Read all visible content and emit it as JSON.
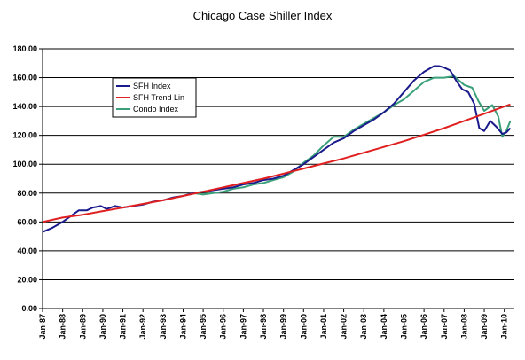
{
  "chart_data": {
    "type": "line",
    "title": "Chicago Case Shiller Index",
    "xlabel": "",
    "ylabel": "",
    "ylim": [
      0,
      180
    ],
    "yticks": [
      "0.00",
      "20.00",
      "40.00",
      "60.00",
      "80.00",
      "100.00",
      "120.00",
      "140.00",
      "160.00",
      "180.00"
    ],
    "xlim": [
      1987.0,
      2010.5
    ],
    "xticks": [
      "Jan-87",
      "Jan-88",
      "Jan-89",
      "Jan-90",
      "Jan-91",
      "Jan-92",
      "Jan-93",
      "Jan-94",
      "Jan-95",
      "Jan-96",
      "Jan-97",
      "Jan-98",
      "Jan-99",
      "Jan-00",
      "Jan-01",
      "Jan-02",
      "Jan-03",
      "Jan-04",
      "Jan-05",
      "Jan-06",
      "Jan-07",
      "Jan-08",
      "Jan-09",
      "Jan-10"
    ],
    "grid": "horizontal",
    "legend_position": "upper-left",
    "series": [
      {
        "name": "SFH Index",
        "color": "#1a1a8c",
        "points": [
          [
            1987.0,
            53
          ],
          [
            1987.5,
            56
          ],
          [
            1988.0,
            60
          ],
          [
            1988.4,
            64
          ],
          [
            1988.8,
            68
          ],
          [
            1989.2,
            68
          ],
          [
            1989.5,
            70
          ],
          [
            1989.9,
            71
          ],
          [
            1990.2,
            69
          ],
          [
            1990.6,
            71
          ],
          [
            1991.0,
            70
          ],
          [
            1991.5,
            71
          ],
          [
            1992.0,
            72
          ],
          [
            1992.5,
            74
          ],
          [
            1993.0,
            75
          ],
          [
            1993.5,
            77
          ],
          [
            1994.0,
            78
          ],
          [
            1994.5,
            80
          ],
          [
            1995.0,
            81
          ],
          [
            1995.5,
            82
          ],
          [
            1996.0,
            83
          ],
          [
            1996.5,
            84
          ],
          [
            1997.0,
            86
          ],
          [
            1997.5,
            87
          ],
          [
            1998.0,
            89
          ],
          [
            1998.5,
            90
          ],
          [
            1999.0,
            92
          ],
          [
            1999.5,
            96
          ],
          [
            2000.0,
            100
          ],
          [
            2000.5,
            105
          ],
          [
            2001.0,
            110
          ],
          [
            2001.5,
            115
          ],
          [
            2002.0,
            118
          ],
          [
            2002.5,
            123
          ],
          [
            2003.0,
            127
          ],
          [
            2003.5,
            131
          ],
          [
            2004.0,
            136
          ],
          [
            2004.5,
            142
          ],
          [
            2005.0,
            150
          ],
          [
            2005.5,
            158
          ],
          [
            2006.0,
            164
          ],
          [
            2006.5,
            168
          ],
          [
            2006.75,
            168
          ],
          [
            2007.0,
            167
          ],
          [
            2007.3,
            165
          ],
          [
            2007.6,
            158
          ],
          [
            2007.9,
            152
          ],
          [
            2008.2,
            150
          ],
          [
            2008.5,
            142
          ],
          [
            2008.75,
            125
          ],
          [
            2009.0,
            123
          ],
          [
            2009.3,
            130
          ],
          [
            2009.6,
            126
          ],
          [
            2009.9,
            121
          ],
          [
            2010.1,
            122
          ],
          [
            2010.3,
            125
          ]
        ]
      },
      {
        "name": "SFH Trend Lin",
        "color": "#e02020",
        "points": [
          [
            1987.0,
            60
          ],
          [
            1988.0,
            63
          ],
          [
            1989.0,
            65
          ],
          [
            1990.0,
            67.5
          ],
          [
            1991.0,
            70
          ],
          [
            1992.0,
            72.5
          ],
          [
            1993.0,
            75
          ],
          [
            1994.0,
            78
          ],
          [
            1995.0,
            81
          ],
          [
            1996.0,
            84
          ],
          [
            1997.0,
            87
          ],
          [
            1998.0,
            90
          ],
          [
            1999.0,
            93.5
          ],
          [
            2000.0,
            97
          ],
          [
            2001.0,
            100.5
          ],
          [
            2002.0,
            104
          ],
          [
            2003.0,
            108
          ],
          [
            2004.0,
            112
          ],
          [
            2005.0,
            116
          ],
          [
            2006.0,
            120.5
          ],
          [
            2007.0,
            125
          ],
          [
            2008.0,
            130
          ],
          [
            2009.0,
            135
          ],
          [
            2010.0,
            140
          ],
          [
            2010.3,
            141.5
          ]
        ]
      },
      {
        "name": "Condo Index",
        "color": "#3aa07a",
        "points": [
          [
            1994.5,
            80
          ],
          [
            1995.0,
            79
          ],
          [
            1995.5,
            80
          ],
          [
            1996.0,
            81
          ],
          [
            1996.5,
            83
          ],
          [
            1997.0,
            84
          ],
          [
            1997.5,
            86
          ],
          [
            1998.0,
            87
          ],
          [
            1998.5,
            89
          ],
          [
            1999.0,
            91
          ],
          [
            1999.5,
            95
          ],
          [
            2000.0,
            101
          ],
          [
            2000.5,
            106
          ],
          [
            2001.0,
            113
          ],
          [
            2001.5,
            119
          ],
          [
            2002.0,
            119
          ],
          [
            2002.5,
            124
          ],
          [
            2003.0,
            128
          ],
          [
            2003.5,
            132
          ],
          [
            2004.0,
            136
          ],
          [
            2004.5,
            141
          ],
          [
            2005.0,
            145
          ],
          [
            2005.5,
            151
          ],
          [
            2006.0,
            157
          ],
          [
            2006.5,
            160
          ],
          [
            2007.0,
            160
          ],
          [
            2007.5,
            161
          ],
          [
            2008.0,
            155
          ],
          [
            2008.4,
            153
          ],
          [
            2008.7,
            144
          ],
          [
            2009.0,
            137
          ],
          [
            2009.4,
            141
          ],
          [
            2009.7,
            133
          ],
          [
            2009.9,
            119
          ],
          [
            2010.1,
            123
          ],
          [
            2010.3,
            130
          ]
        ]
      }
    ]
  }
}
